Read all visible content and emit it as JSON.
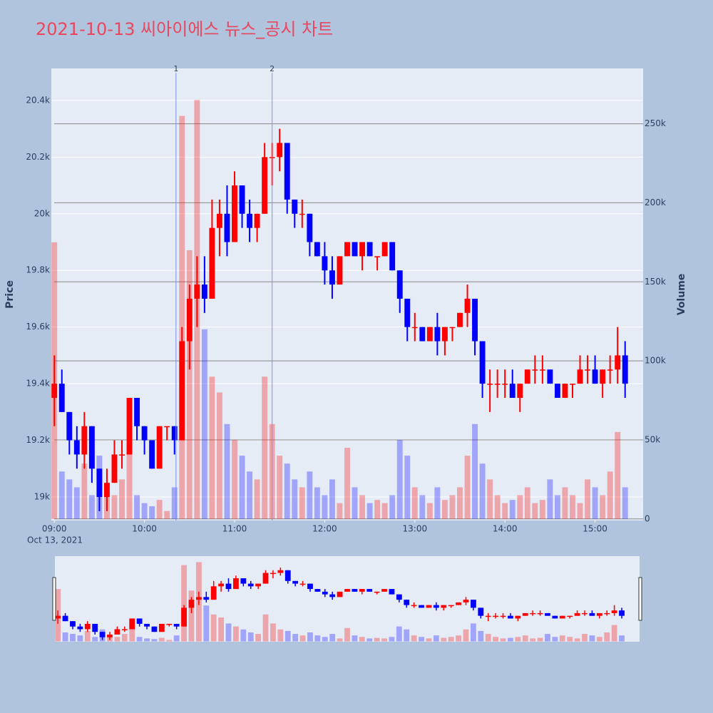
{
  "chart_data": {
    "type": "candlestick",
    "title": "2021-10-13 씨아이에스 뉴스_공시 차트",
    "ylabel": "Price",
    "y2label": "Volume",
    "x_date_label": "Oct 13, 2021",
    "increasing_color": "#ff0000",
    "decreasing_color": "#0000ff",
    "grid": true,
    "x": [
      "2021-10-13 09:00",
      "2021-10-13 09:05",
      "2021-10-13 09:10",
      "2021-10-13 09:15",
      "2021-10-13 09:20",
      "2021-10-13 09:25",
      "2021-10-13 09:30",
      "2021-10-13 09:35",
      "2021-10-13 09:40",
      "2021-10-13 09:45",
      "2021-10-13 09:50",
      "2021-10-13 09:55",
      "2021-10-13 10:00",
      "2021-10-13 10:05",
      "2021-10-13 10:10",
      "2021-10-13 10:15",
      "2021-10-13 10:20",
      "2021-10-13 10:25",
      "2021-10-13 10:30",
      "2021-10-13 10:35",
      "2021-10-13 10:40",
      "2021-10-13 10:45",
      "2021-10-13 10:50",
      "2021-10-13 10:55",
      "2021-10-13 11:00",
      "2021-10-13 11:05",
      "2021-10-13 11:10",
      "2021-10-13 11:15",
      "2021-10-13 11:20",
      "2021-10-13 11:25",
      "2021-10-13 11:30",
      "2021-10-13 11:35",
      "2021-10-13 11:40",
      "2021-10-13 11:45",
      "2021-10-13 11:50",
      "2021-10-13 11:55",
      "2021-10-13 12:00",
      "2021-10-13 12:05",
      "2021-10-13 12:10",
      "2021-10-13 12:15",
      "2021-10-13 12:20",
      "2021-10-13 12:25",
      "2021-10-13 12:30",
      "2021-10-13 12:35",
      "2021-10-13 12:40",
      "2021-10-13 12:45",
      "2021-10-13 12:50",
      "2021-10-13 12:55",
      "2021-10-13 13:00",
      "2021-10-13 13:05",
      "2021-10-13 13:10",
      "2021-10-13 13:15",
      "2021-10-13 13:20",
      "2021-10-13 13:25",
      "2021-10-13 13:30",
      "2021-10-13 13:35",
      "2021-10-13 13:40",
      "2021-10-13 13:45",
      "2021-10-13 13:50",
      "2021-10-13 13:55",
      "2021-10-13 14:00",
      "2021-10-13 14:05",
      "2021-10-13 14:10",
      "2021-10-13 14:15",
      "2021-10-13 14:20",
      "2021-10-13 14:25",
      "2021-10-13 14:30",
      "2021-10-13 14:35",
      "2021-10-13 14:40",
      "2021-10-13 14:45",
      "2021-10-13 14:50",
      "2021-10-13 14:55",
      "2021-10-13 15:00",
      "2021-10-13 15:05",
      "2021-10-13 15:10",
      "2021-10-13 15:15",
      "2021-10-13 15:20"
    ],
    "open": [
      19350,
      19400,
      19300,
      19200,
      19150,
      19250,
      19100,
      19000,
      19050,
      19150,
      19150,
      19350,
      19250,
      19200,
      19100,
      19250,
      19250,
      19200,
      19550,
      19700,
      19750,
      19700,
      19950,
      20000,
      19900,
      20100,
      20000,
      19950,
      20000,
      20200,
      20200,
      20250,
      20050,
      20000,
      20000,
      19900,
      19850,
      19800,
      19750,
      19850,
      19900,
      19850,
      19900,
      19850,
      19850,
      19900,
      19800,
      19700,
      19600,
      19600,
      19550,
      19600,
      19550,
      19600,
      19600,
      19650,
      19700,
      19550,
      19400,
      19400,
      19400,
      19400,
      19350,
      19400,
      19450,
      19450,
      19450,
      19400,
      19350,
      19400,
      19400,
      19450,
      19450,
      19400,
      19450,
      19450,
      19500
    ],
    "high": [
      19500,
      19450,
      19300,
      19250,
      19300,
      19250,
      19100,
      19100,
      19200,
      19200,
      19350,
      19350,
      19250,
      19200,
      19250,
      19250,
      19250,
      19600,
      19750,
      19850,
      19850,
      20050,
      20050,
      20100,
      20150,
      20100,
      20050,
      20000,
      20250,
      20250,
      20300,
      20250,
      20050,
      20050,
      20000,
      19900,
      19900,
      19850,
      19850,
      19900,
      19900,
      19900,
      19900,
      19850,
      19900,
      19900,
      19800,
      19700,
      19650,
      19600,
      19600,
      19650,
      19600,
      19600,
      19650,
      19750,
      19700,
      19550,
      19450,
      19450,
      19450,
      19450,
      19400,
      19450,
      19500,
      19500,
      19450,
      19400,
      19400,
      19400,
      19500,
      19500,
      19500,
      19450,
      19500,
      19600,
      19550
    ],
    "low": [
      19250,
      19300,
      19150,
      19100,
      19100,
      19050,
      18950,
      18950,
      19050,
      19100,
      19150,
      19200,
      19150,
      19100,
      19100,
      19200,
      19150,
      19200,
      19450,
      19600,
      19650,
      19700,
      19850,
      19850,
      19900,
      19950,
      19900,
      19900,
      20000,
      20100,
      20150,
      20000,
      19950,
      19950,
      19850,
      19850,
      19750,
      19700,
      19750,
      19850,
      19850,
      19800,
      19850,
      19800,
      19850,
      19800,
      19650,
      19550,
      19550,
      19550,
      19550,
      19500,
      19500,
      19550,
      19600,
      19600,
      19500,
      19350,
      19300,
      19350,
      19350,
      19350,
      19300,
      19400,
      19400,
      19400,
      19400,
      19350,
      19350,
      19350,
      19400,
      19400,
      19400,
      19350,
      19400,
      19400,
      19350
    ],
    "close": [
      19400,
      19300,
      19200,
      19150,
      19250,
      19100,
      19000,
      19050,
      19150,
      19150,
      19350,
      19250,
      19200,
      19100,
      19250,
      19250,
      19200,
      19550,
      19700,
      19750,
      19700,
      19950,
      20000,
      19900,
      20100,
      20000,
      19950,
      20000,
      20200,
      20200,
      20250,
      20050,
      20000,
      20000,
      19900,
      19850,
      19800,
      19750,
      19850,
      19900,
      19850,
      19900,
      19850,
      19850,
      19900,
      19800,
      19700,
      19600,
      19600,
      19550,
      19600,
      19550,
      19600,
      19600,
      19650,
      19700,
      19550,
      19400,
      19400,
      19400,
      19400,
      19350,
      19400,
      19450,
      19450,
      19450,
      19400,
      19350,
      19400,
      19400,
      19450,
      19450,
      19400,
      19450,
      19450,
      19500,
      19400
    ],
    "volume": [
      175000,
      30000,
      25000,
      20000,
      35000,
      15000,
      40000,
      20000,
      15000,
      25000,
      45000,
      15000,
      10000,
      8000,
      12000,
      5000,
      20000,
      255000,
      170000,
      265000,
      120000,
      90000,
      80000,
      60000,
      50000,
      40000,
      30000,
      25000,
      90000,
      60000,
      40000,
      35000,
      25000,
      20000,
      30000,
      20000,
      15000,
      25000,
      10000,
      45000,
      20000,
      15000,
      10000,
      12000,
      10000,
      15000,
      50000,
      40000,
      20000,
      15000,
      10000,
      20000,
      12000,
      15000,
      20000,
      40000,
      60000,
      35000,
      25000,
      15000,
      10000,
      12000,
      15000,
      20000,
      10000,
      12000,
      25000,
      15000,
      20000,
      15000,
      10000,
      25000,
      20000,
      15000,
      30000,
      55000,
      20000
    ],
    "xlim": [
      "2021-10-13 08:58",
      "2021-10-13 15:32"
    ],
    "xticks": [
      {
        "value": "2021-10-13 09:00",
        "label": "09:00"
      },
      {
        "value": "2021-10-13 10:00",
        "label": "10:00"
      },
      {
        "value": "2021-10-13 11:00",
        "label": "11:00"
      },
      {
        "value": "2021-10-13 12:00",
        "label": "12:00"
      },
      {
        "value": "2021-10-13 13:00",
        "label": "13:00"
      },
      {
        "value": "2021-10-13 14:00",
        "label": "14:00"
      },
      {
        "value": "2021-10-13 15:00",
        "label": "15:00"
      }
    ],
    "ylim": [
      18917,
      20513
    ],
    "yticks": [
      {
        "value": 19000,
        "label": "19k"
      },
      {
        "value": 19200,
        "label": "19.2k"
      },
      {
        "value": 19400,
        "label": "19.4k"
      },
      {
        "value": 19600,
        "label": "19.6k"
      },
      {
        "value": 19800,
        "label": "19.8k"
      },
      {
        "value": 20000,
        "label": "20k"
      },
      {
        "value": 20200,
        "label": "20.2k"
      },
      {
        "value": 20400,
        "label": "20.4k"
      }
    ],
    "y2lim": [
      -1000,
      285000
    ],
    "y2ticks": [
      0,
      {
        "value": 50000,
        "label": "50k"
      },
      {
        "value": 100000,
        "label": "100k"
      },
      {
        "value": 150000,
        "label": "150k"
      },
      {
        "value": 200000,
        "label": "200k"
      },
      {
        "value": 250000,
        "label": "250k"
      }
    ],
    "annotations": [
      {
        "x": "2021-10-13 10:21",
        "text": "1"
      },
      {
        "x": "2021-10-13 11:25",
        "text": "2"
      }
    ]
  }
}
